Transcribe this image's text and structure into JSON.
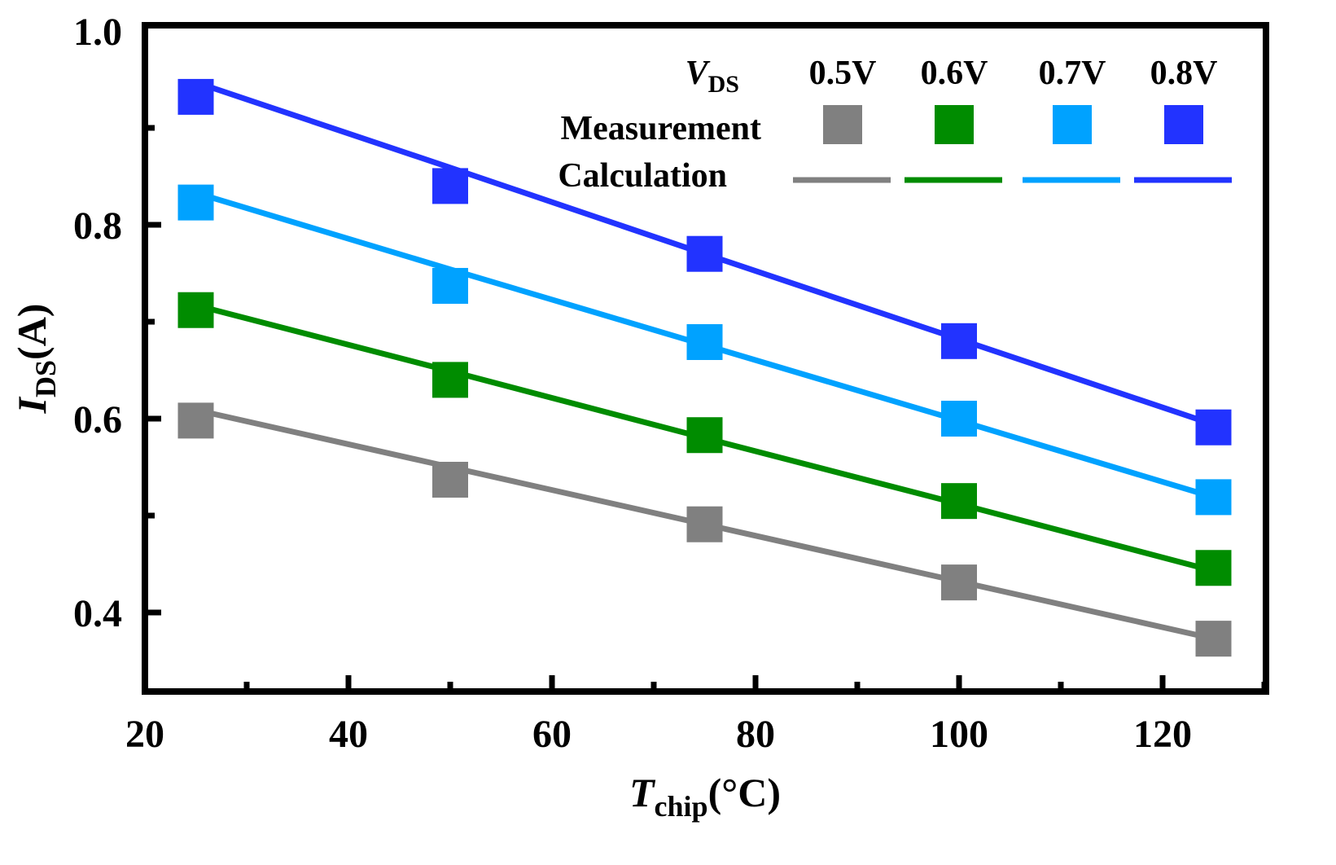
{
  "chart_data": {
    "type": "scatter",
    "title": "",
    "xlabel": {
      "symbol": "T",
      "subscript": "chip",
      "unit": "(°C)"
    },
    "ylabel": {
      "symbol": "I",
      "subscript": "DS",
      "unit": "(A)"
    },
    "xlim": [
      20,
      130
    ],
    "ylim": [
      0.32,
      1.0
    ],
    "x_ticks": [
      20,
      40,
      60,
      80,
      100,
      120
    ],
    "x_tick_labels": [
      "20",
      "40",
      "60",
      "80",
      "100",
      "120"
    ],
    "y_ticks": [
      0.4,
      0.6,
      0.8,
      1.0
    ],
    "y_tick_labels": [
      "0.4",
      "0.6",
      "0.8",
      "1.0"
    ],
    "grid": false,
    "legend": {
      "position": "top-right",
      "header_symbol": "V",
      "header_subscript": "DS",
      "measurement_label": "Measurement",
      "calculation_label": "Calculation"
    },
    "x": [
      25,
      50,
      75,
      100,
      125
    ],
    "series": [
      {
        "name": "0.5V",
        "color": "#808080",
        "measurement": [
          0.598,
          0.537,
          0.491,
          0.431,
          0.373
        ],
        "calculation": [
          0.609,
          0.55,
          0.491,
          0.432,
          0.373
        ]
      },
      {
        "name": "0.6V",
        "color": "#008c00",
        "measurement": [
          0.712,
          0.64,
          0.583,
          0.515,
          0.446
        ],
        "calculation": [
          0.717,
          0.649,
          0.58,
          0.512,
          0.443
        ]
      },
      {
        "name": "0.7V",
        "color": "#00a2ff",
        "measurement": [
          0.823,
          0.737,
          0.679,
          0.6,
          0.519
        ],
        "calculation": [
          0.833,
          0.754,
          0.676,
          0.598,
          0.519
        ]
      },
      {
        "name": "0.8V",
        "color": "#2233ff",
        "measurement": [
          0.932,
          0.84,
          0.77,
          0.68,
          0.591
        ],
        "calculation": [
          0.947,
          0.859,
          0.77,
          0.682,
          0.594
        ]
      }
    ]
  }
}
